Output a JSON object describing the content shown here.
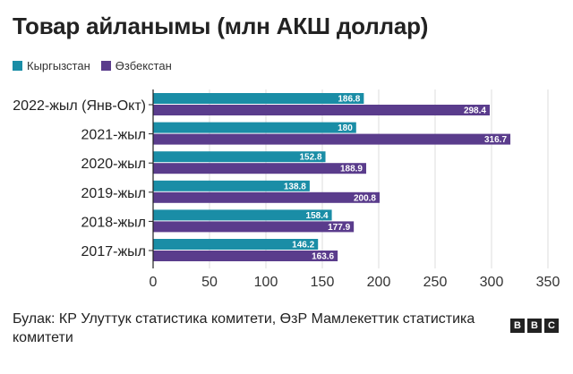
{
  "colors": {
    "kyrgyzstan": "#1a8da6",
    "uzbekistan": "#5a3c8c",
    "grid": "#dddddd",
    "axis": "#222222"
  },
  "chart_data": {
    "type": "bar",
    "orientation": "horizontal",
    "title": "Товар айланымы (млн АКШ доллар)",
    "categories": [
      "2022-жыл (Янв-Окт)",
      "2021-жыл",
      "2020-жыл",
      "2019-жыл",
      "2018-жыл",
      "2017-жыл"
    ],
    "series": [
      {
        "name": "Кыргызстан",
        "values": [
          186.8,
          180,
          152.8,
          138.8,
          158.4,
          146.2
        ]
      },
      {
        "name": "Өзбекстан",
        "values": [
          298.4,
          316.7,
          188.9,
          200.8,
          177.9,
          163.6
        ]
      }
    ],
    "value_labels": [
      [
        "186.8",
        "180",
        "152.8",
        "138.8",
        "158.4",
        "146.2"
      ],
      [
        "298.4",
        "316.7",
        "188.9",
        "200.8",
        "177.9",
        "163.6"
      ]
    ],
    "xlim": [
      0,
      350
    ],
    "xticks": [
      0,
      50,
      100,
      150,
      200,
      250,
      300,
      350
    ],
    "grid": true,
    "legend_position": "top-left"
  },
  "footer": {
    "source": "Булак: КР Улуттук статистика комитети, ӨзР Мамлекеттик статистика комитети"
  },
  "logo": {
    "letters": [
      "B",
      "B",
      "C"
    ]
  }
}
